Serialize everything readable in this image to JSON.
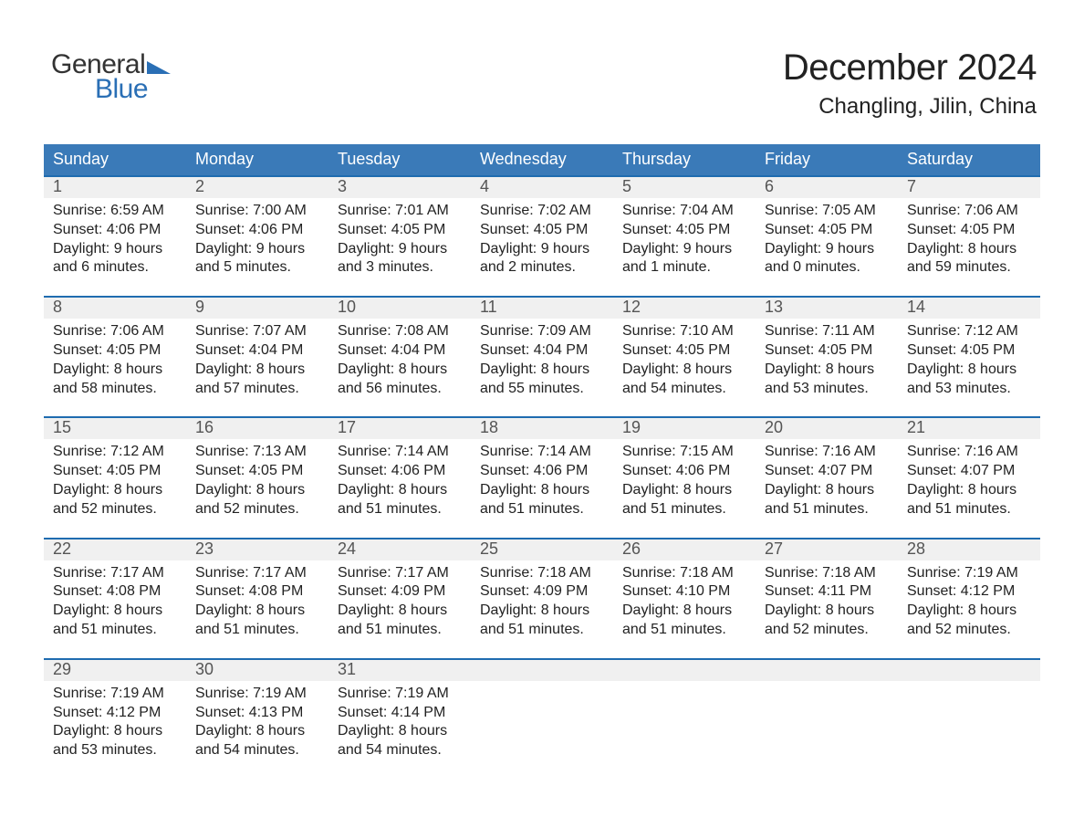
{
  "brand": {
    "line1": "General",
    "line2": "Blue"
  },
  "title": "December 2024",
  "subtitle": "Changling, Jilin, China",
  "colors": {
    "header_blue": "#3a7ab8",
    "accent_blue": "#1f6cb0",
    "logo_blue": "#2a6fb5",
    "daynum_gray": "#f0f0f0",
    "background": "#ffffff",
    "text": "#222222"
  },
  "dow": [
    "Sunday",
    "Monday",
    "Tuesday",
    "Wednesday",
    "Thursday",
    "Friday",
    "Saturday"
  ],
  "weeks": [
    [
      {
        "n": "1",
        "sr": "Sunrise: 6:59 AM",
        "ss": "Sunset: 4:06 PM",
        "dl": "Daylight: 9 hours and 6 minutes."
      },
      {
        "n": "2",
        "sr": "Sunrise: 7:00 AM",
        "ss": "Sunset: 4:06 PM",
        "dl": "Daylight: 9 hours and 5 minutes."
      },
      {
        "n": "3",
        "sr": "Sunrise: 7:01 AM",
        "ss": "Sunset: 4:05 PM",
        "dl": "Daylight: 9 hours and 3 minutes."
      },
      {
        "n": "4",
        "sr": "Sunrise: 7:02 AM",
        "ss": "Sunset: 4:05 PM",
        "dl": "Daylight: 9 hours and 2 minutes."
      },
      {
        "n": "5",
        "sr": "Sunrise: 7:04 AM",
        "ss": "Sunset: 4:05 PM",
        "dl": "Daylight: 9 hours and 1 minute."
      },
      {
        "n": "6",
        "sr": "Sunrise: 7:05 AM",
        "ss": "Sunset: 4:05 PM",
        "dl": "Daylight: 9 hours and 0 minutes."
      },
      {
        "n": "7",
        "sr": "Sunrise: 7:06 AM",
        "ss": "Sunset: 4:05 PM",
        "dl": "Daylight: 8 hours and 59 minutes."
      }
    ],
    [
      {
        "n": "8",
        "sr": "Sunrise: 7:06 AM",
        "ss": "Sunset: 4:05 PM",
        "dl": "Daylight: 8 hours and 58 minutes."
      },
      {
        "n": "9",
        "sr": "Sunrise: 7:07 AM",
        "ss": "Sunset: 4:04 PM",
        "dl": "Daylight: 8 hours and 57 minutes."
      },
      {
        "n": "10",
        "sr": "Sunrise: 7:08 AM",
        "ss": "Sunset: 4:04 PM",
        "dl": "Daylight: 8 hours and 56 minutes."
      },
      {
        "n": "11",
        "sr": "Sunrise: 7:09 AM",
        "ss": "Sunset: 4:04 PM",
        "dl": "Daylight: 8 hours and 55 minutes."
      },
      {
        "n": "12",
        "sr": "Sunrise: 7:10 AM",
        "ss": "Sunset: 4:05 PM",
        "dl": "Daylight: 8 hours and 54 minutes."
      },
      {
        "n": "13",
        "sr": "Sunrise: 7:11 AM",
        "ss": "Sunset: 4:05 PM",
        "dl": "Daylight: 8 hours and 53 minutes."
      },
      {
        "n": "14",
        "sr": "Sunrise: 7:12 AM",
        "ss": "Sunset: 4:05 PM",
        "dl": "Daylight: 8 hours and 53 minutes."
      }
    ],
    [
      {
        "n": "15",
        "sr": "Sunrise: 7:12 AM",
        "ss": "Sunset: 4:05 PM",
        "dl": "Daylight: 8 hours and 52 minutes."
      },
      {
        "n": "16",
        "sr": "Sunrise: 7:13 AM",
        "ss": "Sunset: 4:05 PM",
        "dl": "Daylight: 8 hours and 52 minutes."
      },
      {
        "n": "17",
        "sr": "Sunrise: 7:14 AM",
        "ss": "Sunset: 4:06 PM",
        "dl": "Daylight: 8 hours and 51 minutes."
      },
      {
        "n": "18",
        "sr": "Sunrise: 7:14 AM",
        "ss": "Sunset: 4:06 PM",
        "dl": "Daylight: 8 hours and 51 minutes."
      },
      {
        "n": "19",
        "sr": "Sunrise: 7:15 AM",
        "ss": "Sunset: 4:06 PM",
        "dl": "Daylight: 8 hours and 51 minutes."
      },
      {
        "n": "20",
        "sr": "Sunrise: 7:16 AM",
        "ss": "Sunset: 4:07 PM",
        "dl": "Daylight: 8 hours and 51 minutes."
      },
      {
        "n": "21",
        "sr": "Sunrise: 7:16 AM",
        "ss": "Sunset: 4:07 PM",
        "dl": "Daylight: 8 hours and 51 minutes."
      }
    ],
    [
      {
        "n": "22",
        "sr": "Sunrise: 7:17 AM",
        "ss": "Sunset: 4:08 PM",
        "dl": "Daylight: 8 hours and 51 minutes."
      },
      {
        "n": "23",
        "sr": "Sunrise: 7:17 AM",
        "ss": "Sunset: 4:08 PM",
        "dl": "Daylight: 8 hours and 51 minutes."
      },
      {
        "n": "24",
        "sr": "Sunrise: 7:17 AM",
        "ss": "Sunset: 4:09 PM",
        "dl": "Daylight: 8 hours and 51 minutes."
      },
      {
        "n": "25",
        "sr": "Sunrise: 7:18 AM",
        "ss": "Sunset: 4:09 PM",
        "dl": "Daylight: 8 hours and 51 minutes."
      },
      {
        "n": "26",
        "sr": "Sunrise: 7:18 AM",
        "ss": "Sunset: 4:10 PM",
        "dl": "Daylight: 8 hours and 51 minutes."
      },
      {
        "n": "27",
        "sr": "Sunrise: 7:18 AM",
        "ss": "Sunset: 4:11 PM",
        "dl": "Daylight: 8 hours and 52 minutes."
      },
      {
        "n": "28",
        "sr": "Sunrise: 7:19 AM",
        "ss": "Sunset: 4:12 PM",
        "dl": "Daylight: 8 hours and 52 minutes."
      }
    ],
    [
      {
        "n": "29",
        "sr": "Sunrise: 7:19 AM",
        "ss": "Sunset: 4:12 PM",
        "dl": "Daylight: 8 hours and 53 minutes."
      },
      {
        "n": "30",
        "sr": "Sunrise: 7:19 AM",
        "ss": "Sunset: 4:13 PM",
        "dl": "Daylight: 8 hours and 54 minutes."
      },
      {
        "n": "31",
        "sr": "Sunrise: 7:19 AM",
        "ss": "Sunset: 4:14 PM",
        "dl": "Daylight: 8 hours and 54 minutes."
      },
      {
        "n": ""
      },
      {
        "n": ""
      },
      {
        "n": ""
      },
      {
        "n": ""
      }
    ]
  ]
}
